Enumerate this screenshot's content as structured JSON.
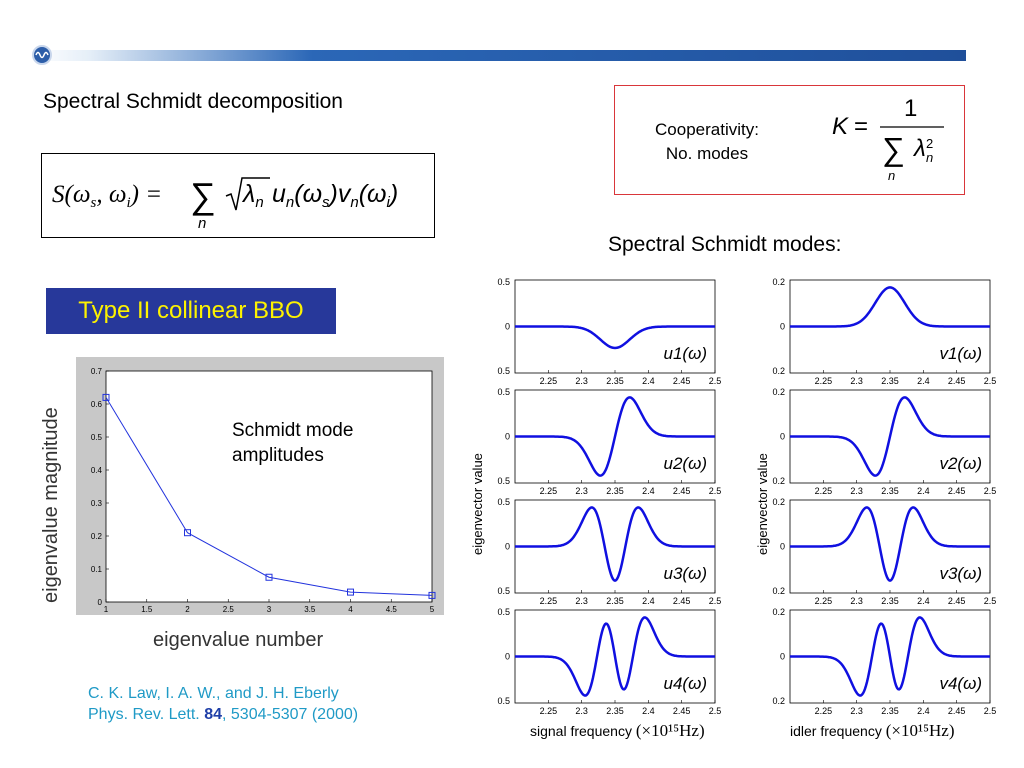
{
  "slide": {
    "heading_decomposition": "Spectral Schmidt decomposition",
    "equation_decomposition": "S(ω_s, ω_i) = Σ_n √λ_n u_n(ω_s) v_n(ω_i)",
    "cooperativity_label_line1": "Cooperativity:",
    "cooperativity_label_line2": "No. modes",
    "cooperativity_formula": "K = 1 / Σ_n λ_n²",
    "modes_heading": "Spectral Schmidt modes:",
    "bbo_label": "Type II collinear BBO",
    "schmidt_note_line1": "Schmidt mode",
    "schmidt_note_line2": "amplitudes",
    "reference_line1": "C. K. Law, I. A. W., and J. H. Eberly",
    "reference_line2_prefix": "Phys. Rev. Lett. ",
    "reference_volume": "84",
    "reference_line2_suffix": ", 5304-5307 (2000)",
    "colors": {
      "accent_blue": "#1f4f9a",
      "bbo_bg": "#27389a",
      "bbo_text": "#fdf200",
      "reference": "#1f9ac6",
      "curve": "#1010e0",
      "cooperativity_border": "#d9363a"
    }
  },
  "chart_data": [
    {
      "type": "line",
      "title": "",
      "xlabel": "eigenvalue number",
      "ylabel": "eigenvalue magnitude",
      "x": [
        1,
        2,
        3,
        4,
        5
      ],
      "series": [
        {
          "values": [
            0.62,
            0.21,
            0.075,
            0.03,
            0.02
          ]
        }
      ],
      "xlim": [
        1,
        5
      ],
      "ylim": [
        0,
        0.7
      ],
      "xticks": [
        "1",
        "1.5",
        "2",
        "2.5",
        "3",
        "3.5",
        "4",
        "4.5",
        "5"
      ],
      "yticks": [
        "0",
        "0.1",
        "0.2",
        "0.3",
        "0.4",
        "0.5",
        "0.6",
        "0.7"
      ],
      "marker": "square"
    },
    {
      "type": "line",
      "panels": "4x2 grid of eigenvector plots",
      "xlabel_left": "signal frequency",
      "xlabel_right": "idler frequency",
      "x_unit": "(×10¹⁵Hz)",
      "ylabel": "eigenvector value",
      "xticks": [
        "2.25",
        "2.3",
        "2.35",
        "2.4",
        "2.45",
        "2.5"
      ],
      "xlim": [
        2.2,
        2.5
      ],
      "left_yticks": [
        "0.5",
        "0",
        "0.5"
      ],
      "right_yticks": [
        "0.2",
        "0",
        "0.2"
      ],
      "series": [
        {
          "name": "u1(ω)",
          "modes": 1,
          "side": "left"
        },
        {
          "name": "u2(ω)",
          "modes": 2,
          "side": "left"
        },
        {
          "name": "u3(ω)",
          "modes": 3,
          "side": "left"
        },
        {
          "name": "u4(ω)",
          "modes": 4,
          "side": "left"
        },
        {
          "name": "v1(ω)",
          "modes": 1,
          "side": "right"
        },
        {
          "name": "v2(ω)",
          "modes": 2,
          "side": "right"
        },
        {
          "name": "v3(ω)",
          "modes": 3,
          "side": "right"
        },
        {
          "name": "v4(ω)",
          "modes": 4,
          "side": "right"
        }
      ]
    }
  ]
}
